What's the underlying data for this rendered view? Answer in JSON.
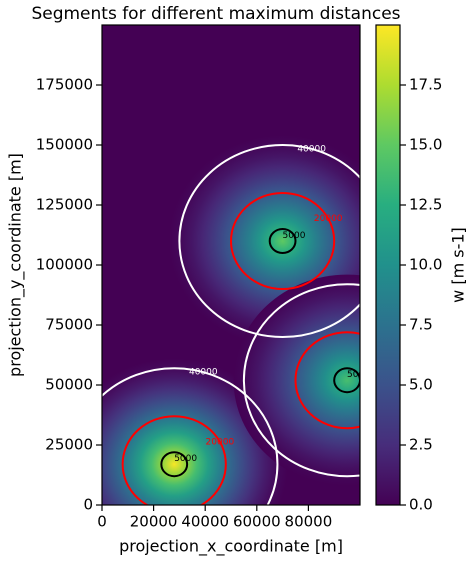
{
  "chart_data": {
    "type": "heatmap",
    "title": "Segments for different maximum distances",
    "x_label": "projection_x_coordinate [m]",
    "y_label": "projection_y_coordinate [m]",
    "colorbar_label": "w [m s-1]",
    "xlim": [
      0,
      100000
    ],
    "xticks": [
      0,
      20000,
      40000,
      60000,
      80000
    ],
    "ylim": [
      0,
      200000
    ],
    "yticks": [
      0,
      25000,
      50000,
      75000,
      100000,
      125000,
      150000,
      175000
    ],
    "clim": [
      0,
      20
    ],
    "cticks": [
      {
        "value": 0,
        "label": "0.0"
      },
      2.5,
      {
        "value": 5,
        "label": "5.0"
      },
      7.5,
      {
        "value": 10,
        "label": "10.0"
      },
      12.5,
      {
        "value": 15,
        "label": "15.0"
      },
      17.5
    ],
    "features": [
      {
        "x": 28000,
        "y": 17000,
        "peak": 19.8
      },
      {
        "x": 70000,
        "y": 110000,
        "peak": 15
      },
      {
        "x": 95000,
        "y": 52000,
        "peak": 14
      }
    ],
    "contours": [
      {
        "level": 5000,
        "color": "black"
      },
      {
        "level": 20000,
        "color": "red"
      },
      {
        "level": 40000,
        "color": "white"
      }
    ]
  }
}
